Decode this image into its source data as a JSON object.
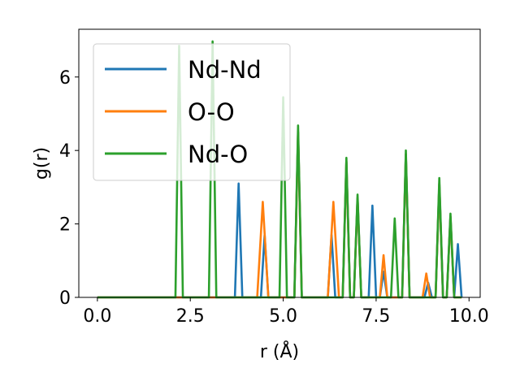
{
  "chart_data": {
    "type": "line",
    "title": "",
    "xlabel": "r (Å)",
    "ylabel": "g(r)",
    "xlim": [
      -0.5,
      10.3
    ],
    "ylim": [
      0,
      7.3
    ],
    "x_ticks": [
      0.0,
      2.5,
      5.0,
      7.5,
      10.0
    ],
    "x_tick_labels": [
      "0.0",
      "2.5",
      "5.0",
      "7.5",
      "10.0"
    ],
    "y_ticks": [
      0,
      2,
      4,
      6
    ],
    "y_tick_labels": [
      "0",
      "2",
      "4",
      "6"
    ],
    "grid": false,
    "legend_position": "upper-left",
    "series": [
      {
        "name": "Nd-Nd",
        "color": "#1f77b4",
        "x": [
          0,
          3.7,
          3.8,
          3.9,
          4.4,
          4.5,
          4.6,
          5.3,
          5.4,
          5.5,
          6.2,
          6.3,
          6.4,
          6.6,
          6.7,
          6.8,
          6.9,
          7.0,
          7.1,
          7.3,
          7.4,
          7.5,
          7.6,
          7.7,
          7.8,
          8.2,
          8.3,
          8.4,
          8.8,
          8.9,
          9.0,
          9.1,
          9.2,
          9.3,
          9.4,
          9.5,
          9.6,
          9.7,
          9.8
        ],
        "y": [
          0,
          0,
          3.1,
          0,
          0,
          1.7,
          0,
          0,
          4.5,
          0,
          0,
          1.7,
          0,
          0,
          3.7,
          0,
          0,
          2.7,
          0,
          0,
          2.5,
          0,
          0,
          0.7,
          0,
          0,
          3.9,
          0,
          0,
          0.4,
          0,
          0,
          3.1,
          0,
          0,
          2.2,
          0,
          1.45,
          0
        ]
      },
      {
        "name": "O-O",
        "color": "#ff7f0e",
        "x": [
          0,
          4.3,
          4.45,
          4.6,
          5.3,
          5.4,
          5.5,
          6.2,
          6.35,
          6.5,
          6.6,
          6.7,
          6.8,
          6.9,
          7.0,
          7.1,
          7.6,
          7.7,
          7.8,
          8.2,
          8.3,
          8.4,
          8.75,
          8.85,
          8.95,
          9.1,
          9.2,
          9.3,
          9.4,
          9.5,
          9.6,
          9.8
        ],
        "y": [
          0,
          0,
          2.6,
          0,
          0,
          4.5,
          0,
          0,
          2.6,
          0,
          0,
          3.7,
          0,
          0,
          2.7,
          0,
          0,
          1.15,
          0,
          0,
          3.9,
          0,
          0,
          0.65,
          0,
          0,
          3.1,
          0,
          0,
          2.2,
          0,
          0
        ]
      },
      {
        "name": "Nd-O",
        "color": "#2ca02c",
        "x": [
          0,
          2.1,
          2.2,
          2.3,
          3.0,
          3.1,
          3.2,
          4.9,
          5.0,
          5.1,
          5.3,
          5.4,
          5.5,
          6.6,
          6.7,
          6.8,
          6.9,
          7.0,
          7.1,
          7.9,
          8.0,
          8.1,
          8.2,
          8.3,
          8.4,
          9.1,
          9.2,
          9.3,
          9.4,
          9.5,
          9.6,
          9.8
        ],
        "y": [
          0,
          0,
          6.85,
          0,
          0,
          6.97,
          0,
          0,
          5.45,
          0,
          0,
          4.68,
          0,
          0,
          3.8,
          0,
          0,
          2.8,
          0,
          0,
          2.15,
          0,
          0,
          4.0,
          0,
          0,
          3.25,
          0,
          0,
          2.28,
          0,
          0
        ]
      }
    ]
  }
}
